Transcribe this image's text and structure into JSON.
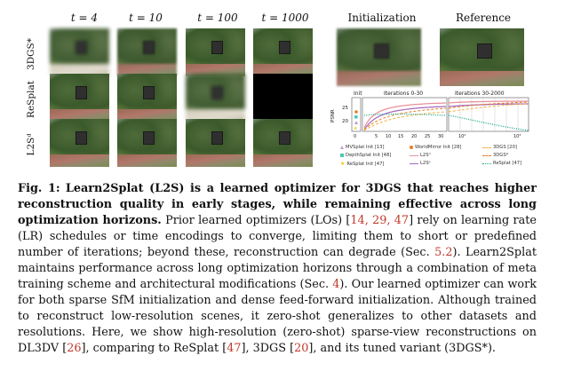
{
  "columns": {
    "t4": "t = 4",
    "t10": "t = 10",
    "t100": "t = 100",
    "t1000": "t = 1000",
    "init": "Initialization",
    "reference": "Reference"
  },
  "rows": {
    "r1": "3DGS*",
    "r2": "ReSplat",
    "r3": "L2Sᵈ"
  },
  "chart_data": {
    "type": "line",
    "ylabel": "PSNR",
    "panels": {
      "init": "Init",
      "mid": "Iterations 0-30",
      "right": "Iterations 30-2000"
    },
    "yticks": [
      "25",
      "20"
    ],
    "xticks": [
      "0",
      "5",
      "10",
      "15",
      "20",
      "25",
      "30",
      "10²",
      "10³"
    ],
    "series": [
      {
        "name": "MVSplat Init [13]",
        "style": "triangle",
        "color": "#c39bd3"
      },
      {
        "name": "DepthSplat Init [48]",
        "style": "square",
        "color": "#48c9b0"
      },
      {
        "name": "ReSplat Init [47]",
        "style": "star",
        "color": "#f1c40f"
      },
      {
        "name": "WorldMirror Init [28]",
        "style": "dot",
        "color": "#e67e22"
      },
      {
        "name": "L2Sᵈ",
        "style": "line",
        "color": "#e8909a"
      },
      {
        "name": "L2Sᵖ",
        "style": "line",
        "color": "#a569bd"
      },
      {
        "name": "3DGS [20]",
        "style": "dash",
        "color": "#f5b041"
      },
      {
        "name": "3DGS*",
        "style": "dash",
        "color": "#e67e22"
      },
      {
        "name": "ReSplat [47]",
        "style": "dotted",
        "color": "#17a589"
      }
    ]
  },
  "caption": {
    "label": "Fig. 1:",
    "bold_text": "Learn2Splat (L2S) is a learned optimizer for 3DGS that reaches higher reconstruction quality in early stages, while remaining effective across long optimization horizons.",
    "p1": "Prior learned optimizers (LOs) [",
    "r1": "14, 29, 47",
    "p2": "] rely on learning rate (LR) schedules or time encodings to converge, limiting them to short or predefined number of iterations; beyond these, reconstruction can degrade (Sec. ",
    "r2": "5.2",
    "p3": "). Learn2Splat maintains performance across long optimization horizons through a combination of meta training scheme and architectural modifications (Sec. ",
    "r3": "4",
    "p4": "). Our learned optimizer can work for both sparse SfM initialization and dense feed-forward initialization. Although trained to reconstruct low-resolution scenes, it zero-shot generalizes to other datasets and resolutions. Here, we show high-resolution (zero-shot) sparse-view reconstructions on DL3DV [",
    "r4": "26",
    "p5": "], comparing to ReSplat [",
    "r5": "47",
    "p6": "], 3DGS [",
    "r6": "20",
    "p7": "], and its tuned variant (3DGS*)."
  }
}
